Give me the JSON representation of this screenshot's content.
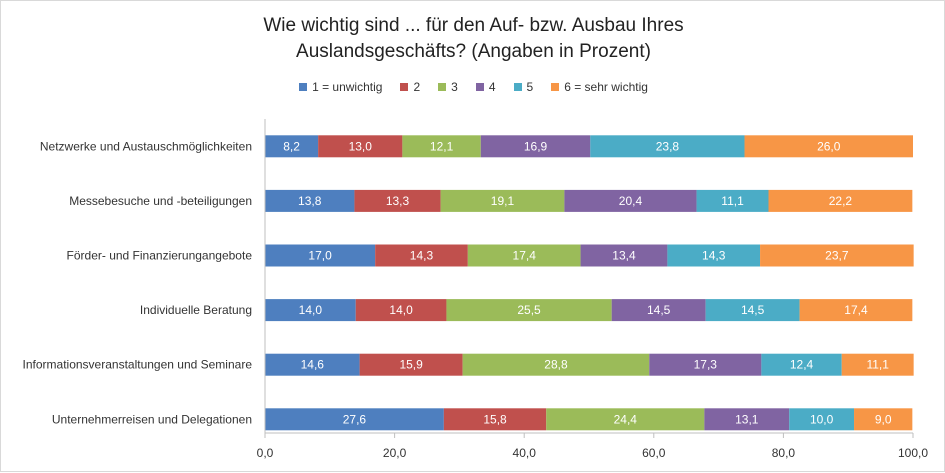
{
  "chart_data": {
    "type": "bar",
    "orientation": "horizontal",
    "stacked": true,
    "title_lines": [
      "Wie wichtig sind ... für den Auf- bzw. Ausbau Ihres",
      "Auslandsgeschäfts? (Angaben in Prozent)"
    ],
    "categories": [
      "Netzwerke und Austauschmöglichkeiten",
      "Messebesuche und -beteiligungen",
      "Förder- und Finanzierungangebote",
      "Individuelle Beratung",
      "Informationsveranstaltungen und Seminare",
      "Unternehmerreisen und Delegationen"
    ],
    "series": [
      {
        "name": "1 = unwichtig",
        "color": "#4e7fbf",
        "values": [
          8.2,
          13.8,
          17.0,
          14.0,
          14.6,
          27.6
        ],
        "labels": [
          "8,2",
          "13,8",
          "17,0",
          "14,0",
          "14,6",
          "27,6"
        ]
      },
      {
        "name": "2",
        "color": "#c0504d",
        "values": [
          13.0,
          13.3,
          14.3,
          14.0,
          15.9,
          15.8
        ],
        "labels": [
          "13,0",
          "13,3",
          "14,3",
          "14,0",
          "15,9",
          "15,8"
        ]
      },
      {
        "name": "3",
        "color": "#9bbb59",
        "values": [
          12.1,
          19.1,
          17.4,
          25.5,
          28.8,
          24.4
        ],
        "labels": [
          "12,1",
          "19,1",
          "17,4",
          "25,5",
          "28,8",
          "24,4"
        ]
      },
      {
        "name": "4",
        "color": "#8064a2",
        "values": [
          16.9,
          20.4,
          13.4,
          14.5,
          17.3,
          13.1
        ],
        "labels": [
          "16,9",
          "20,4",
          "13,4",
          "14,5",
          "17,3",
          "13,1"
        ]
      },
      {
        "name": "5",
        "color": "#4bacc6",
        "values": [
          23.8,
          11.1,
          14.3,
          14.5,
          12.4,
          10.0
        ],
        "labels": [
          "23,8",
          "11,1",
          "14,3",
          "14,5",
          "12,4",
          "10,0"
        ]
      },
      {
        "name": "6 = sehr wichtig",
        "color": "#f79646",
        "values": [
          26.0,
          22.2,
          23.7,
          17.4,
          11.1,
          9.0
        ],
        "labels": [
          "26,0",
          "22,2",
          "23,7",
          "17,4",
          "11,1",
          "9,0"
        ]
      }
    ],
    "xlim": [
      0,
      100
    ],
    "xticks": [
      0,
      20,
      40,
      60,
      80,
      100
    ],
    "xtick_labels": [
      "0,0",
      "20,0",
      "40,0",
      "60,0",
      "80,0",
      "100,0"
    ],
    "legend_position": "top-center",
    "grid": false
  }
}
